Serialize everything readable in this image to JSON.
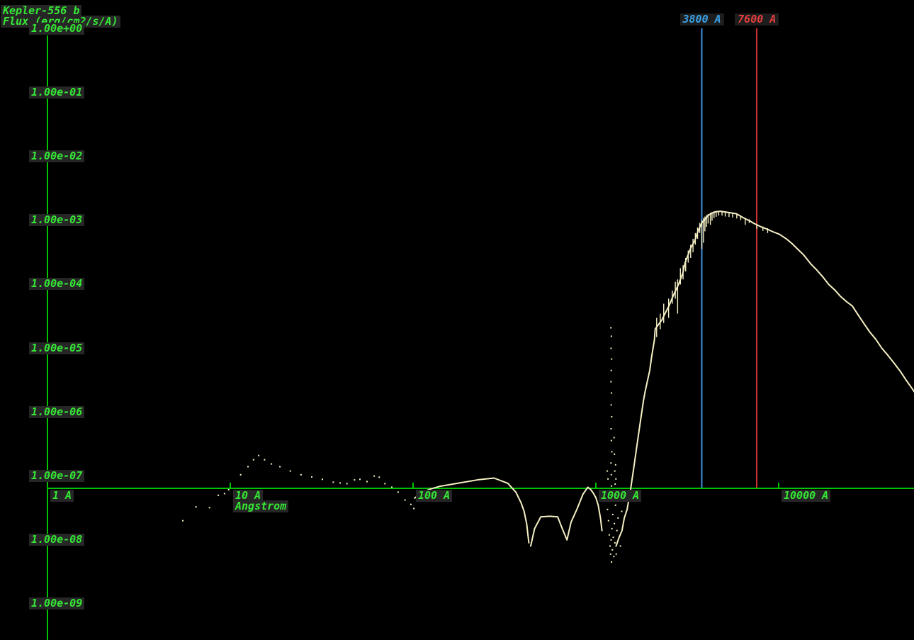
{
  "header": {
    "object": "Kepler-556 b",
    "flux_label": "Flux (erg/cm2/s/A)"
  },
  "colors": {
    "background": "#000000",
    "axis": "#00c400",
    "label_text": "#35e835",
    "label_bg": "#262626",
    "curve": "#f5f0c4",
    "marker_blue_line": "#3d8edc",
    "marker_blue_text": "#39a0e8",
    "marker_red_line": "#d03232",
    "marker_red_text": "#e43d3d"
  },
  "chart_data": {
    "type": "line",
    "title": "Kepler-556 b",
    "ylabel": "Flux (erg/cm2/s/A)",
    "xlabel": "Angstrom",
    "x_scale": "log",
    "y_scale": "log",
    "xlim_angstrom": [
      1,
      57000
    ],
    "ylim_flux": [
      1e-09,
      1
    ],
    "grid": false,
    "legend_position": "none",
    "y_ticks": [
      {
        "label": "1.00e+00",
        "flux": 1
      },
      {
        "label": "1.00e-01",
        "flux": 0.1
      },
      {
        "label": "1.00e-02",
        "flux": 0.01
      },
      {
        "label": "1.00e-03",
        "flux": 0.001
      },
      {
        "label": "1.00e-04",
        "flux": 0.0001
      },
      {
        "label": "1.00e-05",
        "flux": 1e-05
      },
      {
        "label": "1.00e-06",
        "flux": 1e-06
      },
      {
        "label": "1.00e-07",
        "flux": 1e-07
      },
      {
        "label": "1.00e-08",
        "flux": 1e-08
      },
      {
        "label": "1.00e-09",
        "flux": 1e-09
      }
    ],
    "x_ticks": [
      {
        "label": "1 A",
        "wavelength": 1
      },
      {
        "label": "10 A",
        "wavelength": 10,
        "sublabel": "Angstrom"
      },
      {
        "label": "100 A",
        "wavelength": 100
      },
      {
        "label": "1000 A",
        "wavelength": 1000
      },
      {
        "label": "10000 A",
        "wavelength": 10000
      }
    ],
    "markers": [
      {
        "label": "3800 A",
        "wavelength": 3800,
        "line_color": "#3d8edc",
        "text_color": "#39a0e8"
      },
      {
        "label": "7600 A",
        "wavelength": 7600,
        "line_color": "#d03232",
        "text_color": "#e43d3d"
      }
    ],
    "series": [
      {
        "name": "spectrum",
        "color": "#f5f0c4",
        "segments": [
          [
            [
              102,
              4.5e-08
            ],
            [
              112,
              5.6e-08
            ],
            [
              125,
              6.3e-08
            ],
            [
              140,
              6.9e-08
            ],
            [
              175,
              7.7e-08
            ],
            [
              230,
              8.8e-08
            ],
            [
              277,
              9.3e-08
            ],
            [
              330,
              7.7e-08
            ],
            [
              365,
              5.6e-08
            ],
            [
              390,
              3.8e-08
            ],
            [
              405,
              2.8e-08
            ],
            [
              418,
              1.8e-08
            ],
            [
              430,
              9e-09
            ]
          ],
          [
            [
              440,
              8e-09
            ],
            [
              462,
              1.5e-08
            ],
            [
              500,
              2.3e-08
            ],
            [
              560,
              2.35e-08
            ],
            [
              618,
              2.3e-08
            ],
            [
              652,
              1.55e-08
            ],
            [
              695,
              1e-08
            ],
            [
              732,
              1.9e-08
            ],
            [
              791,
              3.1e-08
            ],
            [
              850,
              5.2e-08
            ],
            [
              903,
              6.7e-08
            ],
            [
              935,
              6.2e-08
            ],
            [
              968,
              5.4e-08
            ],
            [
              1000,
              4.6e-08
            ],
            [
              1030,
              3.5e-08
            ],
            [
              1060,
              2.2e-08
            ],
            [
              1080,
              1.4e-08
            ]
          ],
          [
            [
              1290,
              8e-09
            ],
            [
              1340,
              1.1e-08
            ],
            [
              1390,
              1.4e-08
            ],
            [
              1430,
              2.2e-08
            ],
            [
              1482,
              3e-08
            ],
            [
              1550,
              6.3e-08
            ],
            [
              1620,
              1.5e-07
            ],
            [
              1694,
              3.7e-07
            ],
            [
              1740,
              6.3e-07
            ],
            [
              1820,
              1.5e-06
            ],
            [
              1860,
              2.1e-06
            ],
            [
              1970,
              4.5e-06
            ],
            [
              2020,
              7.5e-06
            ],
            [
              2090,
              1.35e-05
            ],
            [
              2110,
              2e-05
            ],
            [
              2160,
              2.2e-05
            ],
            [
              2300,
              2.8e-05
            ],
            [
              2400,
              3.6e-05
            ],
            [
              2510,
              4.6e-05
            ],
            [
              2620,
              6.2e-05
            ],
            [
              2700,
              7.5e-05
            ],
            [
              2830,
              0.0001
            ],
            [
              2990,
              0.00015
            ],
            [
              3080,
              0.00022
            ],
            [
              3300,
              0.00037
            ],
            [
              3470,
              0.00048
            ],
            [
              3630,
              0.0007
            ],
            [
              3790,
              0.00091
            ],
            [
              3900,
              0.001
            ],
            [
              4100,
              0.0012
            ],
            [
              4300,
              0.0013
            ],
            [
              4520,
              0.00138
            ],
            [
              4800,
              0.0014
            ],
            [
              5150,
              0.00136
            ],
            [
              5500,
              0.00132
            ],
            [
              5870,
              0.00128
            ],
            [
              6370,
              0.00112
            ],
            [
              7000,
              0.00098
            ],
            [
              7300,
              0.00091
            ],
            [
              8000,
              0.0008
            ],
            [
              8600,
              0.00074
            ],
            [
              9300,
              0.00067
            ],
            [
              10100,
              0.00061
            ],
            [
              11000,
              0.00052
            ],
            [
              11800,
              0.00044
            ],
            [
              12800,
              0.00035
            ],
            [
              13700,
              0.00029
            ],
            [
              15000,
              0.00021
            ],
            [
              16100,
              0.00017
            ],
            [
              17500,
              0.00013
            ],
            [
              18800,
              0.0001
            ],
            [
              20300,
              8.2e-05
            ],
            [
              21700,
              6.6e-05
            ],
            [
              23500,
              5.4e-05
            ],
            [
              25300,
              4.6e-05
            ],
            [
              27300,
              3.3e-05
            ],
            [
              29400,
              2.4e-05
            ],
            [
              31500,
              1.8e-05
            ],
            [
              33900,
              1.4e-05
            ],
            [
              36700,
              1e-05
            ],
            [
              39700,
              7.7e-06
            ],
            [
              42900,
              5.8e-06
            ],
            [
              46200,
              4.4e-06
            ],
            [
              49700,
              3.2e-06
            ],
            [
              53400,
              2.4e-06
            ],
            [
              57500,
              1.75e-06
            ]
          ]
        ],
        "spikes": [
          [
            2150,
            1.5e-05,
            3e-05
          ],
          [
            2250,
            2e-05,
            3.5e-05
          ],
          [
            2350,
            2.5e-05,
            5e-05
          ],
          [
            2500,
            3e-05,
            6e-05
          ],
          [
            2620,
            5e-05,
            8e-05
          ],
          [
            2720,
            6e-05,
            0.00011
          ],
          [
            2800,
            3.5e-05,
            0.00012
          ],
          [
            2900,
            0.0001,
            0.00018
          ],
          [
            3000,
            0.00012,
            0.0002
          ],
          [
            3100,
            0.00016,
            0.00026
          ],
          [
            3200,
            0.00022,
            0.00034
          ],
          [
            3300,
            0.00026,
            0.00042
          ],
          [
            3400,
            0.00032,
            0.00052
          ],
          [
            3500,
            0.00042,
            0.00064
          ],
          [
            3600,
            0.00052,
            0.00078
          ],
          [
            3700,
            0.00064,
            0.00092
          ],
          [
            3800,
            0.00036,
            0.00102
          ],
          [
            3880,
            0.00045,
            0.0011
          ],
          [
            3950,
            0.00068,
            0.00116
          ],
          [
            4030,
            0.0008,
            0.00122
          ],
          [
            4110,
            0.0009,
            0.00127
          ],
          [
            4230,
            0.00086,
            0.00133
          ],
          [
            4320,
            0.001,
            0.00136
          ],
          [
            4430,
            0.0011,
            0.0014
          ],
          [
            4550,
            0.00115,
            0.00142
          ],
          [
            4700,
            0.0012,
            0.00141
          ],
          [
            4900,
            0.0012,
            0.00139
          ],
          [
            5100,
            0.00116,
            0.00137
          ],
          [
            5350,
            0.00114,
            0.00134
          ],
          [
            5600,
            0.00112,
            0.00131
          ],
          [
            5900,
            0.00108,
            0.00127
          ],
          [
            6200,
            0.00102,
            0.00118
          ],
          [
            6563,
            0.00086,
            0.0011
          ],
          [
            6900,
            0.00092,
            0.00105
          ],
          [
            7600,
            0.00074,
            0.00089
          ],
          [
            8200,
            0.00069,
            0.00081
          ],
          [
            8700,
            0.00064,
            0.00076
          ]
        ],
        "dots": [
          [
            5.5,
            2e-08
          ],
          [
            6.5,
            3.3e-08
          ],
          [
            7.7,
            3.2e-08
          ],
          [
            8.6,
            5e-08
          ],
          [
            9.3,
            5.3e-08
          ],
          [
            9.8,
            6.1e-08
          ],
          [
            11.4,
            1.05e-07
          ],
          [
            12.5,
            1.4e-07
          ],
          [
            13.4,
            1.8e-07
          ],
          [
            14.3,
            2.1e-07
          ],
          [
            15.4,
            1.8e-07
          ],
          [
            16.8,
            1.55e-07
          ],
          [
            18.7,
            1.4e-07
          ],
          [
            21.3,
            1.2e-07
          ],
          [
            24.4,
            1.05e-07
          ],
          [
            27.9,
            9.7e-08
          ],
          [
            31.9,
            8.9e-08
          ],
          [
            36.6,
            8e-08
          ],
          [
            39.9,
            7.8e-08
          ],
          [
            43.5,
            7.6e-08
          ],
          [
            47.8,
            8.7e-08
          ],
          [
            51.2,
            8.9e-08
          ],
          [
            56,
            8.2e-08
          ],
          [
            61.3,
            1e-07
          ],
          [
            65.3,
            9.6e-08
          ],
          [
            70.1,
            7.6e-08
          ],
          [
            76.5,
            6.7e-08
          ],
          [
            82.8,
            5.6e-08
          ],
          [
            90.4,
            4.2e-08
          ],
          [
            97.3,
            3.6e-08
          ],
          [
            101,
            3.1e-08
          ],
          [
            1208,
            2.1e-05
          ],
          [
            1216,
            1.55e-05
          ],
          [
            1212,
            1e-05
          ],
          [
            1219,
            6.8e-06
          ],
          [
            1214,
            4.5e-06
          ],
          [
            1210,
            3e-06
          ],
          [
            1217,
            2e-06
          ],
          [
            1213,
            1.3e-06
          ],
          [
            1220,
            8.5e-07
          ],
          [
            1211,
            5.5e-07
          ],
          [
            1216,
            3.6e-07
          ],
          [
            1222,
            2.4e-07
          ],
          [
            1209,
            1.6e-07
          ],
          [
            1215,
            1.05e-07
          ],
          [
            1218,
            7e-08
          ],
          [
            1155,
            1.2e-07
          ],
          [
            1165,
            9e-08
          ],
          [
            1258,
            4e-07
          ],
          [
            1263,
            2.2e-07
          ],
          [
            1269,
            1.2e-07
          ],
          [
            1275,
            7.5e-08
          ],
          [
            1282,
            1.5e-07
          ],
          [
            1287,
            9e-08
          ],
          [
            1140,
            5e-08
          ],
          [
            1158,
            3e-08
          ],
          [
            1172,
            2e-08
          ],
          [
            1184,
            1.2e-08
          ],
          [
            1195,
            8e-09
          ],
          [
            1204,
            6e-09
          ],
          [
            1212,
            1e-08
          ],
          [
            1218,
            4.5e-09
          ],
          [
            1224,
            1.5e-08
          ],
          [
            1231,
            7e-09
          ],
          [
            1238,
            2.5e-08
          ],
          [
            1246,
            1.1e-08
          ],
          [
            1254,
            5.5e-09
          ],
          [
            1262,
            1.8e-08
          ],
          [
            1271,
            9e-09
          ],
          [
            1281,
            3.5e-08
          ],
          [
            1292,
            6e-09
          ],
          [
            1304,
            1.4e-08
          ],
          [
            1322,
            2.2e-08
          ],
          [
            1343,
            4.5e-08
          ],
          [
            1363,
            8e-09
          ],
          [
            1385,
            2.8e-08
          ]
        ]
      }
    ]
  }
}
